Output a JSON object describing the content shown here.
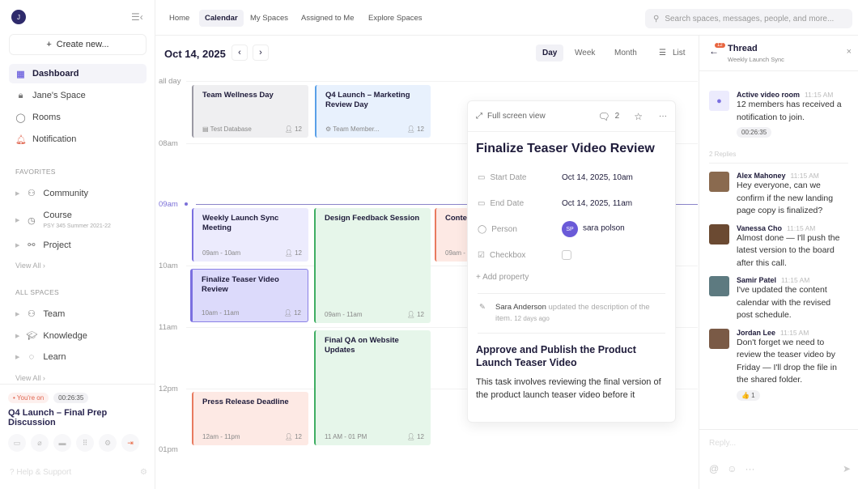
{
  "sidebar": {
    "avatar_initial": "J",
    "create_label": "Create new...",
    "nav": [
      {
        "label": "Dashboard",
        "icon": "grid-icon"
      },
      {
        "label": "Jane's Space",
        "icon": "lock-icon"
      },
      {
        "label": "Rooms",
        "icon": "chat-icon"
      },
      {
        "label": "Notification",
        "icon": "bell-icon"
      }
    ],
    "favorites_heading": "FAVORITES",
    "favorites": [
      {
        "label": "Community",
        "sub": ""
      },
      {
        "label": "Course",
        "sub": "PSY 345 Summer 2021-22"
      },
      {
        "label": "Project",
        "sub": ""
      }
    ],
    "view_all": "View All",
    "spaces_heading": "ALL SPACES",
    "spaces": [
      {
        "label": "Team"
      },
      {
        "label": "Knowledge"
      },
      {
        "label": "Learn"
      }
    ],
    "call": {
      "status": "You're on",
      "timer": "00:26:35",
      "title": "Q4 Launch – Final Prep Discussion"
    },
    "help_label": "Help & Support"
  },
  "topnav": {
    "tabs": [
      "Home",
      "Calendar",
      "My Spaces",
      "Assigned to Me",
      "Explore Spaces"
    ],
    "active": "Calendar",
    "search_placeholder": "Search spaces, messages, people, and more..."
  },
  "calendar": {
    "date": "Oct 14, 2025",
    "views": [
      "Day",
      "Week",
      "Month",
      "List"
    ],
    "active_view": "Day",
    "hours": [
      "all day",
      "08am",
      "09am",
      "10am",
      "11am",
      "12pm",
      "01pm"
    ],
    "events": [
      {
        "title": "Team Wellness Day",
        "meta": "Test Database",
        "count": "12",
        "color": "gray"
      },
      {
        "title": "Q4 Launch – Marketing Review Day",
        "meta": "Team Member...",
        "count": "12",
        "color": "blue"
      },
      {
        "title": "Weekly Launch Sync Meeting",
        "meta": "09am - 10am",
        "count": "12",
        "color": "purple"
      },
      {
        "title": "Finalize Teaser Video Review",
        "meta": "10am - 11am",
        "count": "12",
        "color": "purple2"
      },
      {
        "title": "Design Feedback Session",
        "meta": "09am - 11am",
        "count": "12",
        "color": "green"
      },
      {
        "title": "Conte",
        "meta": "09am -",
        "count": "",
        "color": "orange"
      },
      {
        "title": "Final QA on Website Updates",
        "meta": "11 AM - 01 PM",
        "count": "12",
        "color": "green"
      },
      {
        "title": "Press Release Deadline",
        "meta": "12am - 11pm",
        "count": "12",
        "color": "orange"
      }
    ]
  },
  "detail": {
    "fullscreen_label": "Full screen view",
    "comment_count": "2",
    "title": "Finalize Teaser Video Review",
    "props": [
      {
        "key": "Start Date",
        "value": "Oct 14, 2025, 10am"
      },
      {
        "key": "End Date",
        "value": "Oct 14, 2025, 11am"
      },
      {
        "key": "Person",
        "value": "sara polson",
        "initials": "SP"
      },
      {
        "key": "Checkbox",
        "value": ""
      }
    ],
    "add_property": "Add property",
    "activity": {
      "user": "Sara Anderson",
      "text": "updated the description of the item.",
      "time": "12 days ago"
    },
    "desc_title": "Approve and Publish the Product Launch Teaser Video",
    "desc_text": "This task involves reviewing the final version of the product launch teaser video before it"
  },
  "thread": {
    "badge": "12",
    "title": "Thread",
    "subtitle": "Weekly Launch Sync",
    "room": {
      "name": "Active video room",
      "time": "11:15 AM",
      "text": "12 members has received a notification to join.",
      "timer": "00:26:35"
    },
    "replies_label": "2 Replies",
    "messages": [
      {
        "name": "Alex Mahoney",
        "time": "11:15 AM",
        "text": "Hey everyone, can we confirm if the new landing page copy is finalized?"
      },
      {
        "name": "Vanessa Cho",
        "time": "11:15 AM",
        "text": "Almost done — I'll push the latest version to the board after this call."
      },
      {
        "name": "Samir Patel",
        "time": "11:15 AM",
        "text": "I've updated the content calendar with the revised post schedule."
      },
      {
        "name": "Jordan Lee",
        "time": "11:15 AM",
        "text": "Don't forget we need to review the teaser video by Friday — I'll drop the file in the shared folder.",
        "reaction": "👍 1"
      }
    ],
    "reply_placeholder": "Reply..."
  },
  "colors": {
    "accent": "#7a6fe0",
    "brand_dark": "#2e2a6b",
    "alert": "#e8653f"
  }
}
